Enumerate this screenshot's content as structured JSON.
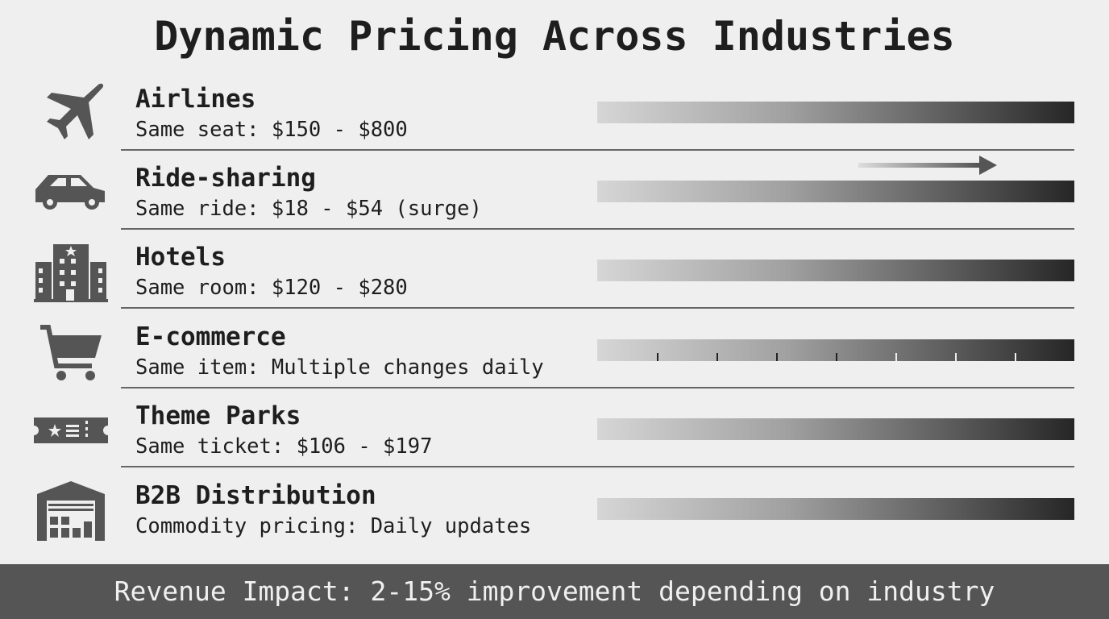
{
  "title": "Dynamic Pricing Across Industries",
  "rows": [
    {
      "icon": "airplane-icon",
      "label": "Airlines",
      "detail": "Same seat: $150 - $800"
    },
    {
      "icon": "car-icon",
      "label": "Ride-sharing",
      "detail": "Same ride: $18 - $54 (surge)"
    },
    {
      "icon": "hotel-icon",
      "label": "Hotels",
      "detail": "Same room: $120 - $280"
    },
    {
      "icon": "shopping-cart-icon",
      "label": "E-commerce",
      "detail": "Same item: Multiple changes daily"
    },
    {
      "icon": "ticket-icon",
      "label": "Theme Parks",
      "detail": "Same ticket: $106 - $197"
    },
    {
      "icon": "warehouse-icon",
      "label": "B2B Distribution",
      "detail": "Commodity pricing: Daily updates"
    }
  ],
  "footer": "Revenue Impact: 2-15% improvement depending on industry",
  "colors": {
    "background": "#efefef",
    "icon": "#555555",
    "footer_bg": "#555555",
    "bar_start": "#d6d6d6",
    "bar_end": "#262626"
  }
}
